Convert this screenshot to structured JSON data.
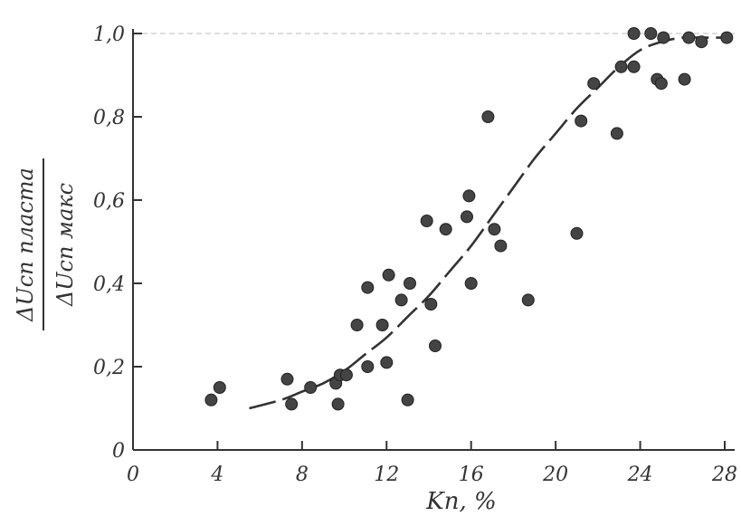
{
  "chart_data": {
    "type": "scatter",
    "xlabel": "Kп, %",
    "ylabel": {
      "numerator": "ΔUсп пласта",
      "denominator": "ΔUсп макс"
    },
    "xlim": [
      0,
      28
    ],
    "ylim": [
      0,
      1.0
    ],
    "x_ticks": [
      "0",
      "4",
      "8",
      "12",
      "16",
      "20",
      "24",
      "28"
    ],
    "y_ticks": [
      "0",
      "0,2",
      "0,4",
      "0,6",
      "0,8",
      "1,0"
    ],
    "grid": false,
    "colors": {
      "axis": "#333333",
      "point": "#444444",
      "curve": "#333333"
    },
    "points": [
      [
        3.7,
        0.12
      ],
      [
        4.1,
        0.15
      ],
      [
        7.3,
        0.17
      ],
      [
        7.5,
        0.11
      ],
      [
        8.4,
        0.15
      ],
      [
        9.6,
        0.16
      ],
      [
        9.7,
        0.11
      ],
      [
        9.8,
        0.18
      ],
      [
        10.1,
        0.18
      ],
      [
        10.6,
        0.3
      ],
      [
        11.1,
        0.39
      ],
      [
        11.1,
        0.2
      ],
      [
        11.8,
        0.3
      ],
      [
        12.0,
        0.21
      ],
      [
        12.1,
        0.42
      ],
      [
        12.7,
        0.36
      ],
      [
        13.0,
        0.12
      ],
      [
        13.1,
        0.4
      ],
      [
        13.9,
        0.55
      ],
      [
        14.1,
        0.35
      ],
      [
        14.3,
        0.25
      ],
      [
        14.8,
        0.53
      ],
      [
        15.8,
        0.56
      ],
      [
        15.9,
        0.61
      ],
      [
        16.0,
        0.4
      ],
      [
        16.8,
        0.8
      ],
      [
        17.1,
        0.53
      ],
      [
        17.4,
        0.49
      ],
      [
        18.7,
        0.36
      ],
      [
        21.0,
        0.52
      ],
      [
        21.2,
        0.79
      ],
      [
        21.8,
        0.88
      ],
      [
        22.9,
        0.76
      ],
      [
        23.1,
        0.92
      ],
      [
        23.7,
        1.0
      ],
      [
        23.7,
        0.92
      ],
      [
        24.5,
        1.0
      ],
      [
        24.8,
        0.89
      ],
      [
        25.0,
        0.88
      ],
      [
        25.1,
        0.99
      ],
      [
        26.1,
        0.89
      ],
      [
        26.3,
        0.99
      ],
      [
        26.9,
        0.98
      ],
      [
        28.1,
        0.99
      ]
    ],
    "curve": [
      [
        5.5,
        0.1
      ],
      [
        7,
        0.12
      ],
      [
        8,
        0.14
      ],
      [
        9,
        0.16
      ],
      [
        10,
        0.19
      ],
      [
        11,
        0.23
      ],
      [
        12,
        0.27
      ],
      [
        13,
        0.32
      ],
      [
        14,
        0.37
      ],
      [
        15,
        0.43
      ],
      [
        16,
        0.49
      ],
      [
        17,
        0.56
      ],
      [
        18,
        0.63
      ],
      [
        19,
        0.7
      ],
      [
        20,
        0.76
      ],
      [
        21,
        0.82
      ],
      [
        22,
        0.87
      ],
      [
        23,
        0.92
      ],
      [
        24,
        0.96
      ],
      [
        25,
        0.98
      ],
      [
        26,
        0.99
      ],
      [
        27,
        0.99
      ],
      [
        28,
        0.99
      ]
    ]
  }
}
